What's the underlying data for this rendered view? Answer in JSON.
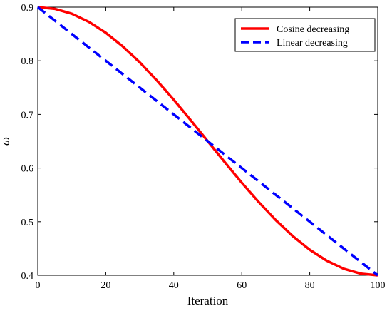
{
  "chart_data": {
    "type": "line",
    "xlabel": "Iteration",
    "ylabel": "ω",
    "xlim": [
      0,
      100
    ],
    "ylim": [
      0.4,
      0.9
    ],
    "xticks": [
      "0",
      "20",
      "40",
      "60",
      "80",
      "100"
    ],
    "yticks": [
      "0.4",
      "0.5",
      "0.6",
      "0.7",
      "0.8",
      "0.9"
    ],
    "grid": false,
    "legend_position": "top-right",
    "series": [
      {
        "name": "Cosine decreasing",
        "color": "#ff0000",
        "style": "solid",
        "x": [
          0,
          5,
          10,
          15,
          20,
          25,
          30,
          35,
          40,
          45,
          50,
          55,
          60,
          65,
          70,
          75,
          80,
          85,
          90,
          95,
          100
        ],
        "y": [
          0.9,
          0.8969,
          0.8878,
          0.8727,
          0.8523,
          0.8268,
          0.797,
          0.7635,
          0.7273,
          0.6891,
          0.65,
          0.6109,
          0.5727,
          0.5365,
          0.503,
          0.4732,
          0.4477,
          0.4273,
          0.4122,
          0.4031,
          0.4
        ]
      },
      {
        "name": "Linear decreasing",
        "color": "#0000ff",
        "style": "dashed",
        "x": [
          0,
          100
        ],
        "y": [
          0.9,
          0.4
        ]
      }
    ]
  }
}
